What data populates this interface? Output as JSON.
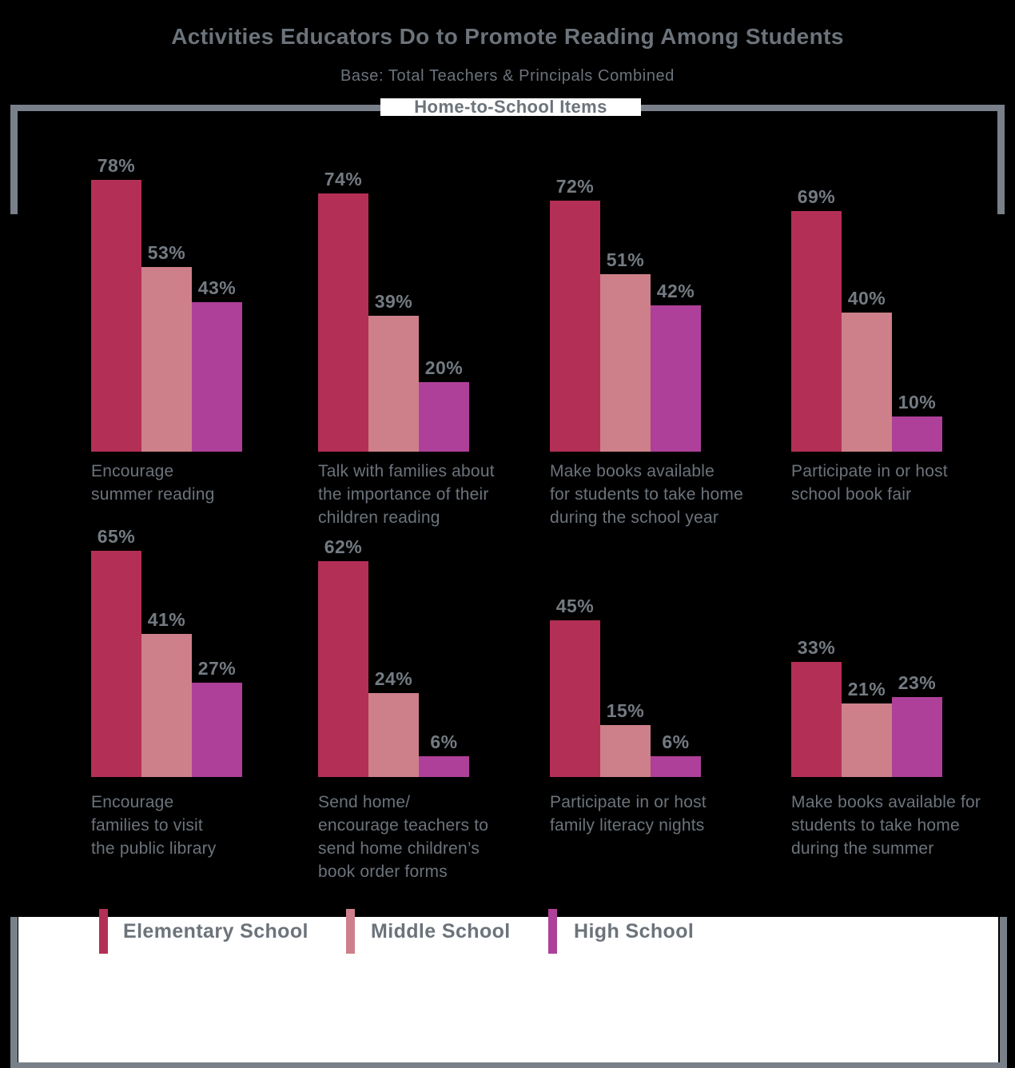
{
  "header": {
    "title": "Activities Educators Do to Promote Reading Among Students",
    "subtitle": "Base: Total Teachers & Principals Combined",
    "section_label": "Home-to-School Items"
  },
  "colors": {
    "background": "#000000",
    "text_gray": "#6c737b",
    "value_gray": "#747b83",
    "bracket_gray": "#798089",
    "panel_white": "#ffffff",
    "elementary": "#b42f55",
    "middle": "#cd8089",
    "high": "#ae4099"
  },
  "legend": {
    "items": [
      {
        "label": "Elementary School",
        "color": "#b42f55"
      },
      {
        "label": "Middle School",
        "color": "#cd8089"
      },
      {
        "label": "High School",
        "color": "#ae4099"
      }
    ]
  },
  "chart_data": {
    "type": "bar",
    "title": "Activities Educators Do to Promote Reading Among Students",
    "subtitle": "Base: Total Teachers & Principals Combined",
    "section": "Home-to-School Items",
    "unit": "%",
    "value_range": [
      0,
      100
    ],
    "axes_shown": false,
    "grid": false,
    "legend_position": "bottom",
    "series_names": [
      "Elementary School",
      "Middle School",
      "High School"
    ],
    "groups": [
      {
        "label": "Encourage\nsummer reading",
        "values": [
          78,
          53,
          43
        ]
      },
      {
        "label": "Talk with families about\nthe importance of their\nchildren reading",
        "values": [
          74,
          39,
          20
        ]
      },
      {
        "label": "Make books available\nfor students to take home\nduring the school year",
        "values": [
          72,
          51,
          42
        ]
      },
      {
        "label": "Participate in or host\nschool book fair",
        "values": [
          69,
          40,
          10
        ]
      },
      {
        "label": "Encourage\nfamilies to visit\nthe public library",
        "values": [
          65,
          41,
          27
        ]
      },
      {
        "label": "Send home/\nencourage teachers to\nsend home children’s\nbook order forms",
        "values": [
          62,
          24,
          6
        ]
      },
      {
        "label": "Participate in or host\nfamily literacy nights",
        "values": [
          45,
          15,
          6
        ]
      },
      {
        "label": "Make books available for\nstudents to take home\nduring the summer",
        "values": [
          33,
          21,
          23
        ]
      }
    ]
  }
}
